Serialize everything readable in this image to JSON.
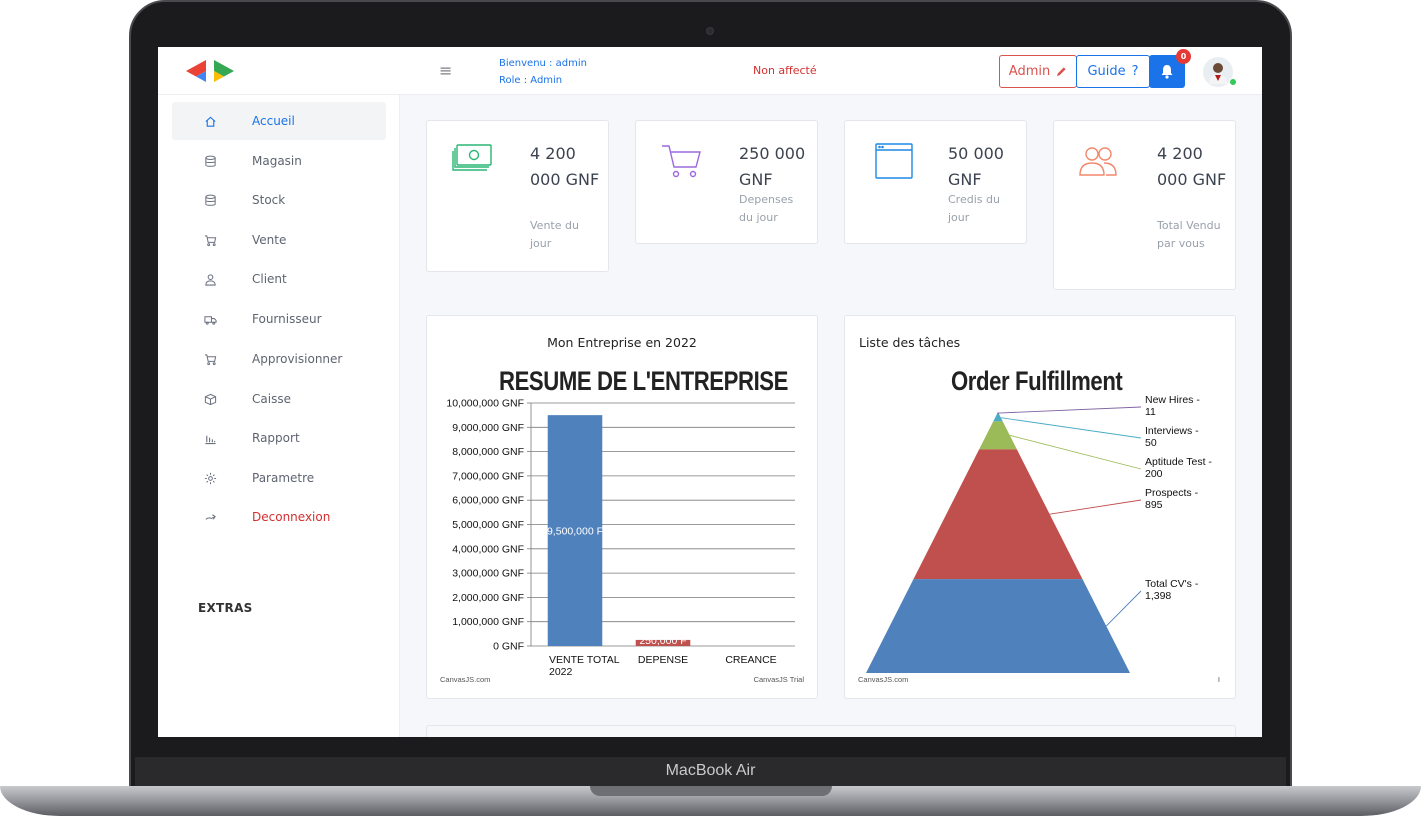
{
  "device": {
    "brand": "MacBook Air"
  },
  "topbar": {
    "welcome_line": "Bienvenu : admin",
    "role_line": "Role : Admin",
    "status": "Non affecté",
    "admin_button": "Admin",
    "guide_button": "Guide",
    "notification_count": "0"
  },
  "sidebar": {
    "items": [
      {
        "label": "Accueil",
        "icon": "home-icon"
      },
      {
        "label": "Magasin",
        "icon": "database-icon"
      },
      {
        "label": "Stock",
        "icon": "database-icon"
      },
      {
        "label": "Vente",
        "icon": "cart-icon"
      },
      {
        "label": "Client",
        "icon": "user-icon"
      },
      {
        "label": "Fournisseur",
        "icon": "truck-icon"
      },
      {
        "label": "Approvisionner",
        "icon": "cart-icon"
      },
      {
        "label": "Caisse",
        "icon": "box-icon"
      },
      {
        "label": "Rapport",
        "icon": "bar-chart-icon"
      },
      {
        "label": "Parametre",
        "icon": "gear-icon"
      },
      {
        "label": "Deconnexion",
        "icon": "logout-icon"
      }
    ],
    "extras_heading": "EXTRAS"
  },
  "stats": [
    {
      "value": "4 200 000 GNF",
      "label": "Vente du jour",
      "icon": "money-icon",
      "color": "#2bb673"
    },
    {
      "value": "250 000 GNF",
      "label": "Depenses du jour",
      "icon": "cart-icon",
      "color": "#9c6ade"
    },
    {
      "value": "50 000 GNF",
      "label": "Credis du jour",
      "icon": "browser-window-icon",
      "color": "#1e88e5"
    },
    {
      "value": "4 200 000 GNF",
      "label": "Total Vendu par vous",
      "icon": "users-icon",
      "color": "#f2876b"
    }
  ],
  "panels": {
    "company": {
      "title": "Mon Entreprise en 2022",
      "credit_left": "CanvasJS.com",
      "credit_right": "CanvasJS Trial"
    },
    "tasks": {
      "title": "Liste des tâches",
      "credit_left": "CanvasJS.com",
      "credit_right": "I"
    }
  },
  "chart_data": [
    {
      "type": "bar",
      "title": "RESUME DE L'ENTREPRISE",
      "categories": [
        "VENTE TOTAL 2022",
        "DEPENSE",
        "CREANCE"
      ],
      "values": [
        9500000,
        250000,
        0
      ],
      "data_labels": [
        "9,500,000 F",
        "250,000 F",
        ""
      ],
      "colors": [
        "#4f81bd",
        "#c0504d",
        "#9bbb59"
      ],
      "ylim": [
        0,
        10000000
      ],
      "yticks": [
        "0 GNF",
        "1,000,000 GNF",
        "2,000,000 GNF",
        "3,000,000 GNF",
        "4,000,000 GNF",
        "5,000,000 GNF",
        "6,000,000 GNF",
        "7,000,000 GNF",
        "8,000,000 GNF",
        "9,000,000 GNF",
        "10,000,000 GNF"
      ],
      "grid": true
    },
    {
      "type": "pyramid",
      "title": "Order Fulfillment",
      "points": [
        {
          "label": "New Hires - 11",
          "value": 11,
          "color": "#8064a2"
        },
        {
          "label": "Interviews - 50",
          "value": 50,
          "color": "#4bacc6"
        },
        {
          "label": "Aptitude Test - 200",
          "value": 200,
          "color": "#9bbb59"
        },
        {
          "label": "Prospects - 895",
          "value": 895,
          "color": "#c0504d"
        },
        {
          "label": "Total CV's - 1,398",
          "value": 1398,
          "color": "#4f81bd"
        }
      ]
    }
  ]
}
